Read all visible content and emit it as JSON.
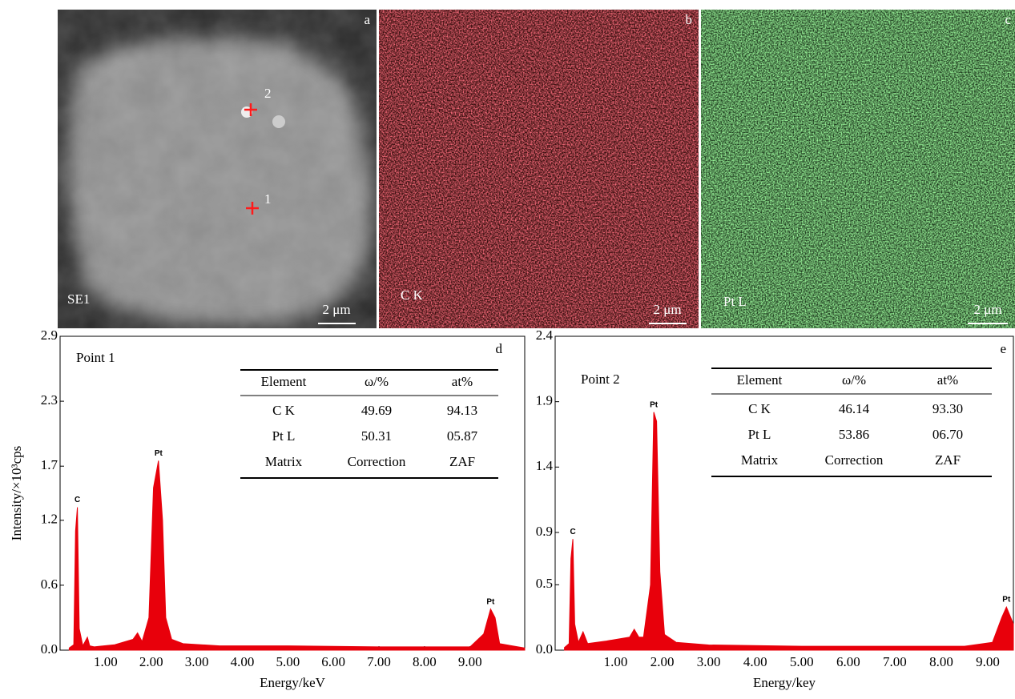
{
  "figure": {
    "panels": [
      {
        "letter": "a",
        "label": "SE1",
        "scale": "2 μm",
        "points": [
          "1",
          "2"
        ]
      },
      {
        "letter": "b",
        "label": "C K",
        "scale": "2 μm"
      },
      {
        "letter": "c",
        "label": "Pt L",
        "scale": "2 μm"
      }
    ]
  },
  "chart_data": [
    {
      "type": "area",
      "panel": "d",
      "title": "Point 1",
      "xlabel": "Energy/keV",
      "ylabel": "Intensity/×10³cps",
      "color": "#e8000b",
      "xlim": [
        0,
        10.2
      ],
      "ylim": [
        0,
        2.9
      ],
      "xticks": [
        {
          "value": 1,
          "label": "1.00"
        },
        {
          "value": 2,
          "label": "2.00"
        },
        {
          "value": 3,
          "label": "3.00"
        },
        {
          "value": 4,
          "label": "4.00"
        },
        {
          "value": 5,
          "label": "5.00"
        },
        {
          "value": 6,
          "label": "6.00"
        },
        {
          "value": 7,
          "label": "7.00"
        },
        {
          "value": 8,
          "label": "8.00"
        },
        {
          "value": 9,
          "label": "9.00"
        }
      ],
      "yticks": [
        {
          "value": 0,
          "label": "0.0"
        },
        0.6,
        1.2,
        1.7,
        2.3,
        2.9
      ],
      "x": [
        0.2,
        0.3,
        0.34,
        0.38,
        0.42,
        0.5,
        0.6,
        0.65,
        0.75,
        1.2,
        1.6,
        1.7,
        1.8,
        1.95,
        2.05,
        2.16,
        2.25,
        2.32,
        2.45,
        2.7,
        3.5,
        5,
        7,
        9,
        9.3,
        9.45,
        9.55,
        9.65,
        10.2
      ],
      "values": [
        0.02,
        0.05,
        1.1,
        1.32,
        0.2,
        0.04,
        0.12,
        0.04,
        0.03,
        0.05,
        0.1,
        0.16,
        0.08,
        0.3,
        1.5,
        1.75,
        1.2,
        0.3,
        0.1,
        0.06,
        0.04,
        0.04,
        0.03,
        0.03,
        0.15,
        0.38,
        0.3,
        0.06,
        0.02
      ],
      "peaks": [
        {
          "text": "C",
          "x": 0.38,
          "y": 1.32
        },
        {
          "text": "Pt",
          "x": 2.16,
          "y": 1.75
        },
        {
          "text": "Pt",
          "x": 9.45,
          "y": 0.38
        }
      ],
      "table": {
        "header": [
          "Element",
          "ω/%",
          "at%"
        ],
        "rows": [
          [
            "C K",
            "49.69",
            "94.13"
          ],
          [
            "Pt L",
            "50.31",
            "05.87"
          ],
          [
            "Matrix",
            "Correction",
            "ZAF"
          ]
        ]
      }
    },
    {
      "type": "area",
      "panel": "e",
      "title": "Point 2",
      "xlabel": "Energy/key",
      "color": "#e8000b",
      "xlim": [
        -0.3,
        9.55
      ],
      "ylim": [
        0,
        2.4
      ],
      "xticks": [
        {
          "value": 1,
          "label": "1.00"
        },
        {
          "value": 2,
          "label": "2.00"
        },
        {
          "value": 3,
          "label": "3.00"
        },
        {
          "value": 4,
          "label": "4.00"
        },
        {
          "value": 5,
          "label": "5.00"
        },
        {
          "value": 6,
          "label": "6.00"
        },
        {
          "value": 7,
          "label": "7.00"
        },
        {
          "value": 8,
          "label": "8.00"
        },
        {
          "value": 9,
          "label": "9.00"
        }
      ],
      "yticks": [
        {
          "value": 0,
          "label": "0.0"
        },
        0.5,
        0.9,
        1.4,
        1.9,
        2.4
      ],
      "x": [
        -0.1,
        0,
        0.04,
        0.08,
        0.12,
        0.2,
        0.3,
        0.4,
        0.8,
        1.3,
        1.4,
        1.5,
        1.6,
        1.75,
        1.82,
        1.88,
        1.95,
        2.05,
        2.3,
        3,
        5,
        7,
        8.5,
        9.1,
        9.3,
        9.4,
        9.55
      ],
      "values": [
        0.02,
        0.05,
        0.7,
        0.85,
        0.2,
        0.06,
        0.14,
        0.05,
        0.07,
        0.1,
        0.16,
        0.1,
        0.1,
        0.5,
        1.82,
        1.75,
        0.6,
        0.12,
        0.06,
        0.04,
        0.03,
        0.03,
        0.03,
        0.06,
        0.25,
        0.33,
        0.2
      ],
      "peaks": [
        {
          "text": "C",
          "x": 0.08,
          "y": 0.85
        },
        {
          "text": "Pt",
          "x": 1.82,
          "y": 1.82
        },
        {
          "text": "Pt",
          "x": 9.4,
          "y": 0.33
        }
      ],
      "table": {
        "header": [
          "Element",
          "ω/%",
          "at%"
        ],
        "rows": [
          [
            "C K",
            "46.14",
            "93.30"
          ],
          [
            "Pt L",
            "53.86",
            "06.70"
          ],
          [
            "Matrix",
            "Correction",
            "ZAF"
          ]
        ]
      }
    }
  ]
}
